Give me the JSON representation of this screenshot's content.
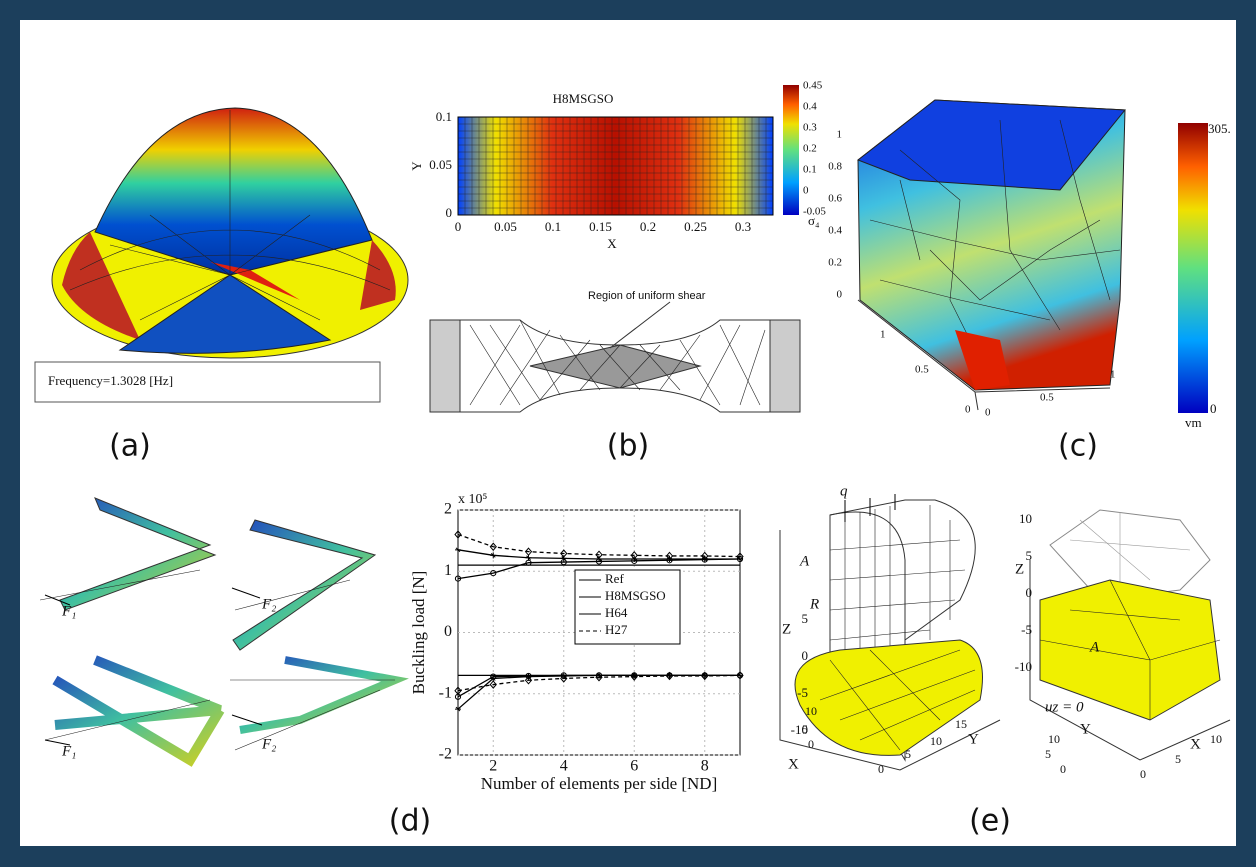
{
  "panels": {
    "a": {
      "frequency": "Frequency=1.3028  [Hz]",
      "caption": "(a)"
    },
    "b": {
      "title": "H8MSGSO",
      "xlabel": "X",
      "ylabel": "Y",
      "xticks": [
        "0",
        "0.05",
        "0.1",
        "0.15",
        "0.2",
        "0.25",
        "0.3"
      ],
      "yticks": [
        "0.1",
        "0.05",
        "0"
      ],
      "colorbar_ticks": [
        "0.45",
        "0.4",
        "0.3",
        "0.2",
        "0.1",
        "0",
        "-0.05"
      ],
      "colorbar_label": "σ₄",
      "region": "Region of uniform shear",
      "caption": "(b)"
    },
    "c": {
      "zticks": [
        "1",
        "0.8",
        "0.6",
        "0.4",
        "0.2",
        "0"
      ],
      "base_ticks": [
        "1",
        "0.5",
        "0",
        "0",
        "0.5",
        "1"
      ],
      "colorbar_top": "305.",
      "colorbar_bottom": "0",
      "colorbar_label": "vm",
      "caption": "(c)"
    },
    "d": {
      "force_1": "F₁",
      "force_2": "F₂",
      "caption": "(d)",
      "chart": {
        "type": "line",
        "exponent": "x 10⁵",
        "ylabel": "Buckling load [N]",
        "xlabel": "Number of elements per side [ND]",
        "x": [
          1,
          2,
          3,
          4,
          5,
          6,
          7,
          8,
          9
        ],
        "xlim": [
          1,
          9
        ],
        "xticks": [
          2,
          4,
          6,
          8
        ],
        "ylim": [
          -2,
          2
        ],
        "yticks": [
          -2,
          -1,
          0,
          1,
          2
        ],
        "grid": true,
        "series": [
          {
            "name": "Ref",
            "color": "#000000",
            "marker": "none",
            "dash": "none",
            "upper": [
              1.1,
              1.1,
              1.1,
              1.1,
              1.1,
              1.1,
              1.1,
              1.1,
              1.1
            ],
            "lower": [
              -0.7,
              -0.7,
              -0.7,
              -0.7,
              -0.7,
              -0.7,
              -0.7,
              -0.7,
              -0.7
            ]
          },
          {
            "name": "H8MSGSO",
            "color": "#000000",
            "marker": "circle",
            "dash": "none",
            "upper": [
              0.88,
              0.97,
              1.14,
              1.15,
              1.16,
              1.17,
              1.18,
              1.19,
              1.2
            ],
            "lower": [
              -1.05,
              -0.72,
              -0.71,
              -0.7,
              -0.7,
              -0.7,
              -0.7,
              -0.7,
              -0.7
            ]
          },
          {
            "name": "H64",
            "color": "#000000",
            "marker": "star",
            "dash": "none",
            "upper": [
              1.35,
              1.26,
              1.22,
              1.21,
              1.2,
              1.2,
              1.2,
              1.2,
              1.2
            ],
            "lower": [
              -1.25,
              -0.75,
              -0.72,
              -0.71,
              -0.7,
              -0.7,
              -0.7,
              -0.7,
              -0.7
            ]
          },
          {
            "name": "H27",
            "color": "#000000",
            "marker": "diamond",
            "dash": "4 3",
            "upper": [
              1.6,
              1.4,
              1.32,
              1.29,
              1.27,
              1.26,
              1.25,
              1.25,
              1.24
            ],
            "lower": [
              -0.95,
              -0.85,
              -0.78,
              -0.75,
              -0.73,
              -0.72,
              -0.71,
              -0.71,
              -0.7
            ]
          }
        ]
      }
    },
    "e": {
      "load": "q",
      "point_left": "A",
      "radius": "R",
      "z_left": "Z",
      "zticks_left": [
        "5",
        "0",
        "-5",
        "-10"
      ],
      "x_left": "X",
      "y_left": "Y",
      "base_left": [
        "0",
        "5",
        "10",
        "0",
        "5",
        "10",
        "15"
      ],
      "z_right": "Z",
      "zticks_right": [
        "10",
        "5",
        "0",
        "-5",
        "-10"
      ],
      "point_right": "A",
      "constraint": "uz = 0",
      "y_right": "Y",
      "x_right": "X",
      "base_right": [
        "0",
        "5",
        "10",
        "0",
        "5",
        "10"
      ],
      "caption": "(e)"
    }
  }
}
